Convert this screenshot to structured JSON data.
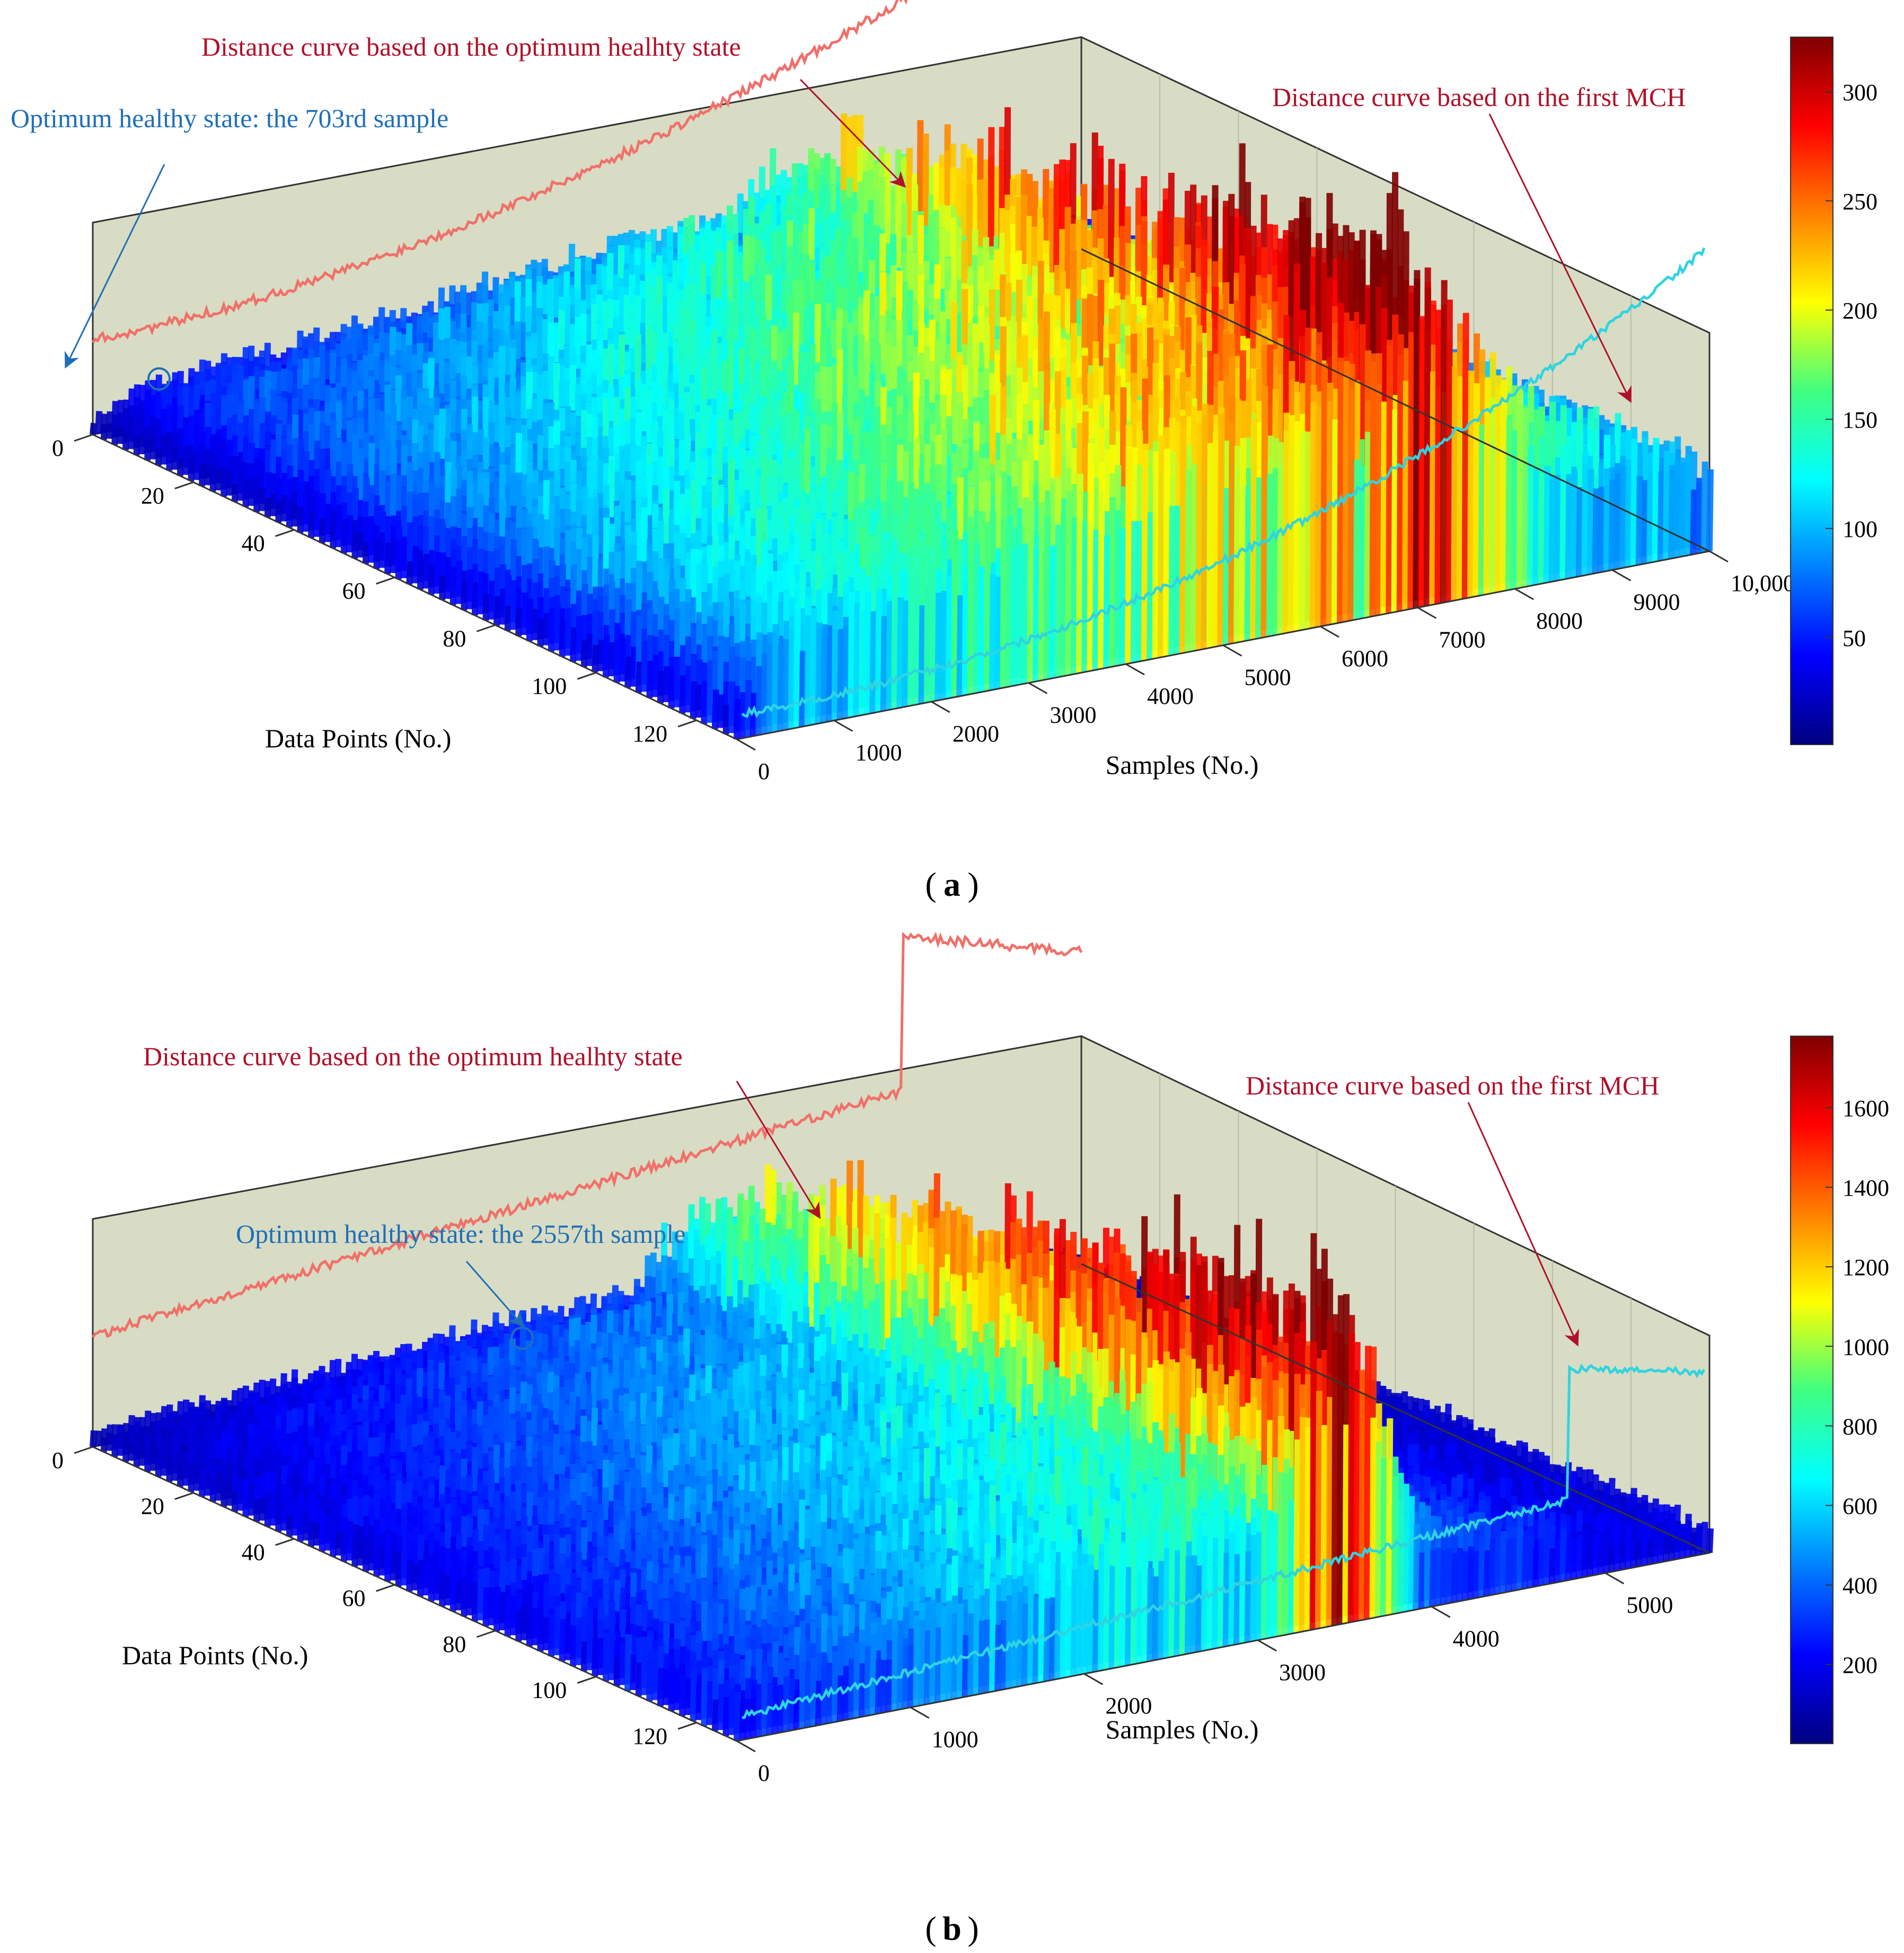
{
  "chart_data": [
    {
      "panel_label_open": "(",
      "panel_label": "a",
      "panel_label_close": ")",
      "type": "surface3d",
      "xlabel": "Samples (No.)",
      "ylabel": "Data Points (No.)",
      "x_ticks": [
        "0",
        "1000",
        "2000",
        "3000",
        "4000",
        "5000",
        "6000",
        "7000",
        "8000",
        "9000",
        "10,000"
      ],
      "x_tick_values": [
        0,
        1000,
        2000,
        3000,
        4000,
        5000,
        6000,
        7000,
        8000,
        9000,
        10000
      ],
      "y_ticks": [
        "0",
        "20",
        "40",
        "60",
        "80",
        "100",
        "120"
      ],
      "y_tick_values": [
        0,
        20,
        40,
        60,
        80,
        100,
        120
      ],
      "xlim": [
        0,
        10000
      ],
      "ylim": [
        0,
        128
      ],
      "colorbar": {
        "ticks": [
          "50",
          "100",
          "150",
          "200",
          "250",
          "300"
        ],
        "values": [
          50,
          100,
          150,
          200,
          250,
          300
        ],
        "range": [
          1,
          325
        ],
        "colormap": "jet"
      },
      "annotations": [
        "Distance curve based on the optimum healhty state",
        "Optimum healthy state: the 703rd sample",
        "Distance curve based on the first MCH"
      ],
      "optimum_sample": 703,
      "curves": {
        "optimum_curve_color": "#f0706a",
        "mch_curve_color": "#2fd4e0",
        "arrow_color": "#b0102a",
        "marker_color": "#1f6fb8"
      },
      "surface_profile": {
        "x_fraction": [
          0,
          0.05,
          0.1,
          0.2,
          0.3,
          0.4,
          0.5,
          0.6,
          0.65,
          0.7,
          0.75,
          0.8,
          0.85,
          0.9,
          0.95,
          1.0
        ],
        "peak_value": [
          40,
          100,
          110,
          130,
          150,
          180,
          200,
          220,
          210,
          320,
          240,
          170,
          130,
          110,
          100,
          80
        ]
      }
    },
    {
      "panel_label_open": "(",
      "panel_label": "b",
      "panel_label_close": ")",
      "type": "surface3d",
      "xlabel": "Samples (No.)",
      "ylabel": "Data Points (No.)",
      "x_ticks": [
        "0",
        "1000",
        "2000",
        "3000",
        "4000",
        "5000"
      ],
      "x_tick_values": [
        0,
        1000,
        2000,
        3000,
        4000,
        5000
      ],
      "y_ticks": [
        "0",
        "20",
        "40",
        "60",
        "80",
        "100",
        "120"
      ],
      "y_tick_values": [
        0,
        20,
        40,
        60,
        80,
        100,
        120
      ],
      "xlim": [
        0,
        5600
      ],
      "ylim": [
        0,
        128
      ],
      "colorbar": {
        "ticks": [
          "200",
          "400",
          "600",
          "800",
          "1000",
          "1200",
          "1400",
          "1600"
        ],
        "values": [
          200,
          400,
          600,
          800,
          1000,
          1200,
          1400,
          1600
        ],
        "range": [
          1,
          1780
        ],
        "colormap": "jet"
      },
      "annotations": [
        "Distance curve based on the optimum healhty state",
        "Optimum healthy state: the 2557th sample",
        "Distance curve based on the first MCH"
      ],
      "optimum_sample": 2557,
      "curves": {
        "optimum_curve_color": "#f0706a",
        "mch_curve_color": "#2fd4e0",
        "arrow_color": "#b0102a",
        "marker_color": "#1f6fb8"
      },
      "surface_profile": {
        "x_fraction": [
          0,
          0.1,
          0.2,
          0.3,
          0.4,
          0.5,
          0.55,
          0.6,
          0.65,
          0.7,
          0.8,
          0.9,
          1.0
        ],
        "peak_value": [
          250,
          350,
          450,
          550,
          650,
          700,
          750,
          1550,
          1600,
          400,
          300,
          200,
          150
        ]
      }
    }
  ]
}
